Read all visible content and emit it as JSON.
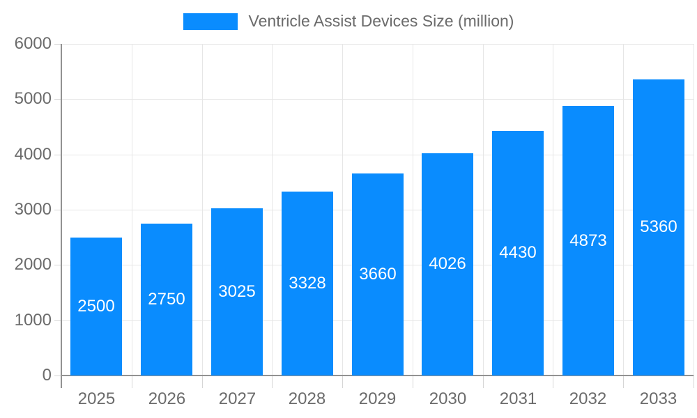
{
  "legend": {
    "label": "Ventricle Assist Devices Size (million)"
  },
  "colors": {
    "bar": "#0a8cfe",
    "grid": "#e6e6e6",
    "tick": "#d6d6d6",
    "axis": "#929292",
    "axis_label": "#6b6b6b",
    "value_label": "#ffffff",
    "background": "#ffffff"
  },
  "chart_data": {
    "type": "bar",
    "title": "Ventricle Assist Devices Size (million)",
    "series_name": "Ventricle Assist Devices Size (million)",
    "categories": [
      "2025",
      "2026",
      "2027",
      "2028",
      "2029",
      "2030",
      "2031",
      "2032",
      "2033"
    ],
    "values": [
      2500,
      2750,
      3025,
      3328,
      3660,
      4026,
      4430,
      4873,
      5360
    ],
    "xlabel": "",
    "ylabel": "",
    "ylim": [
      0,
      6000
    ],
    "ytick_step": 1000,
    "ytick_labels": [
      "0",
      "1000",
      "2000",
      "3000",
      "4000",
      "5000",
      "6000"
    ],
    "grid": true,
    "legend_position": "top-center",
    "data_labels": "inside-middle-white"
  }
}
